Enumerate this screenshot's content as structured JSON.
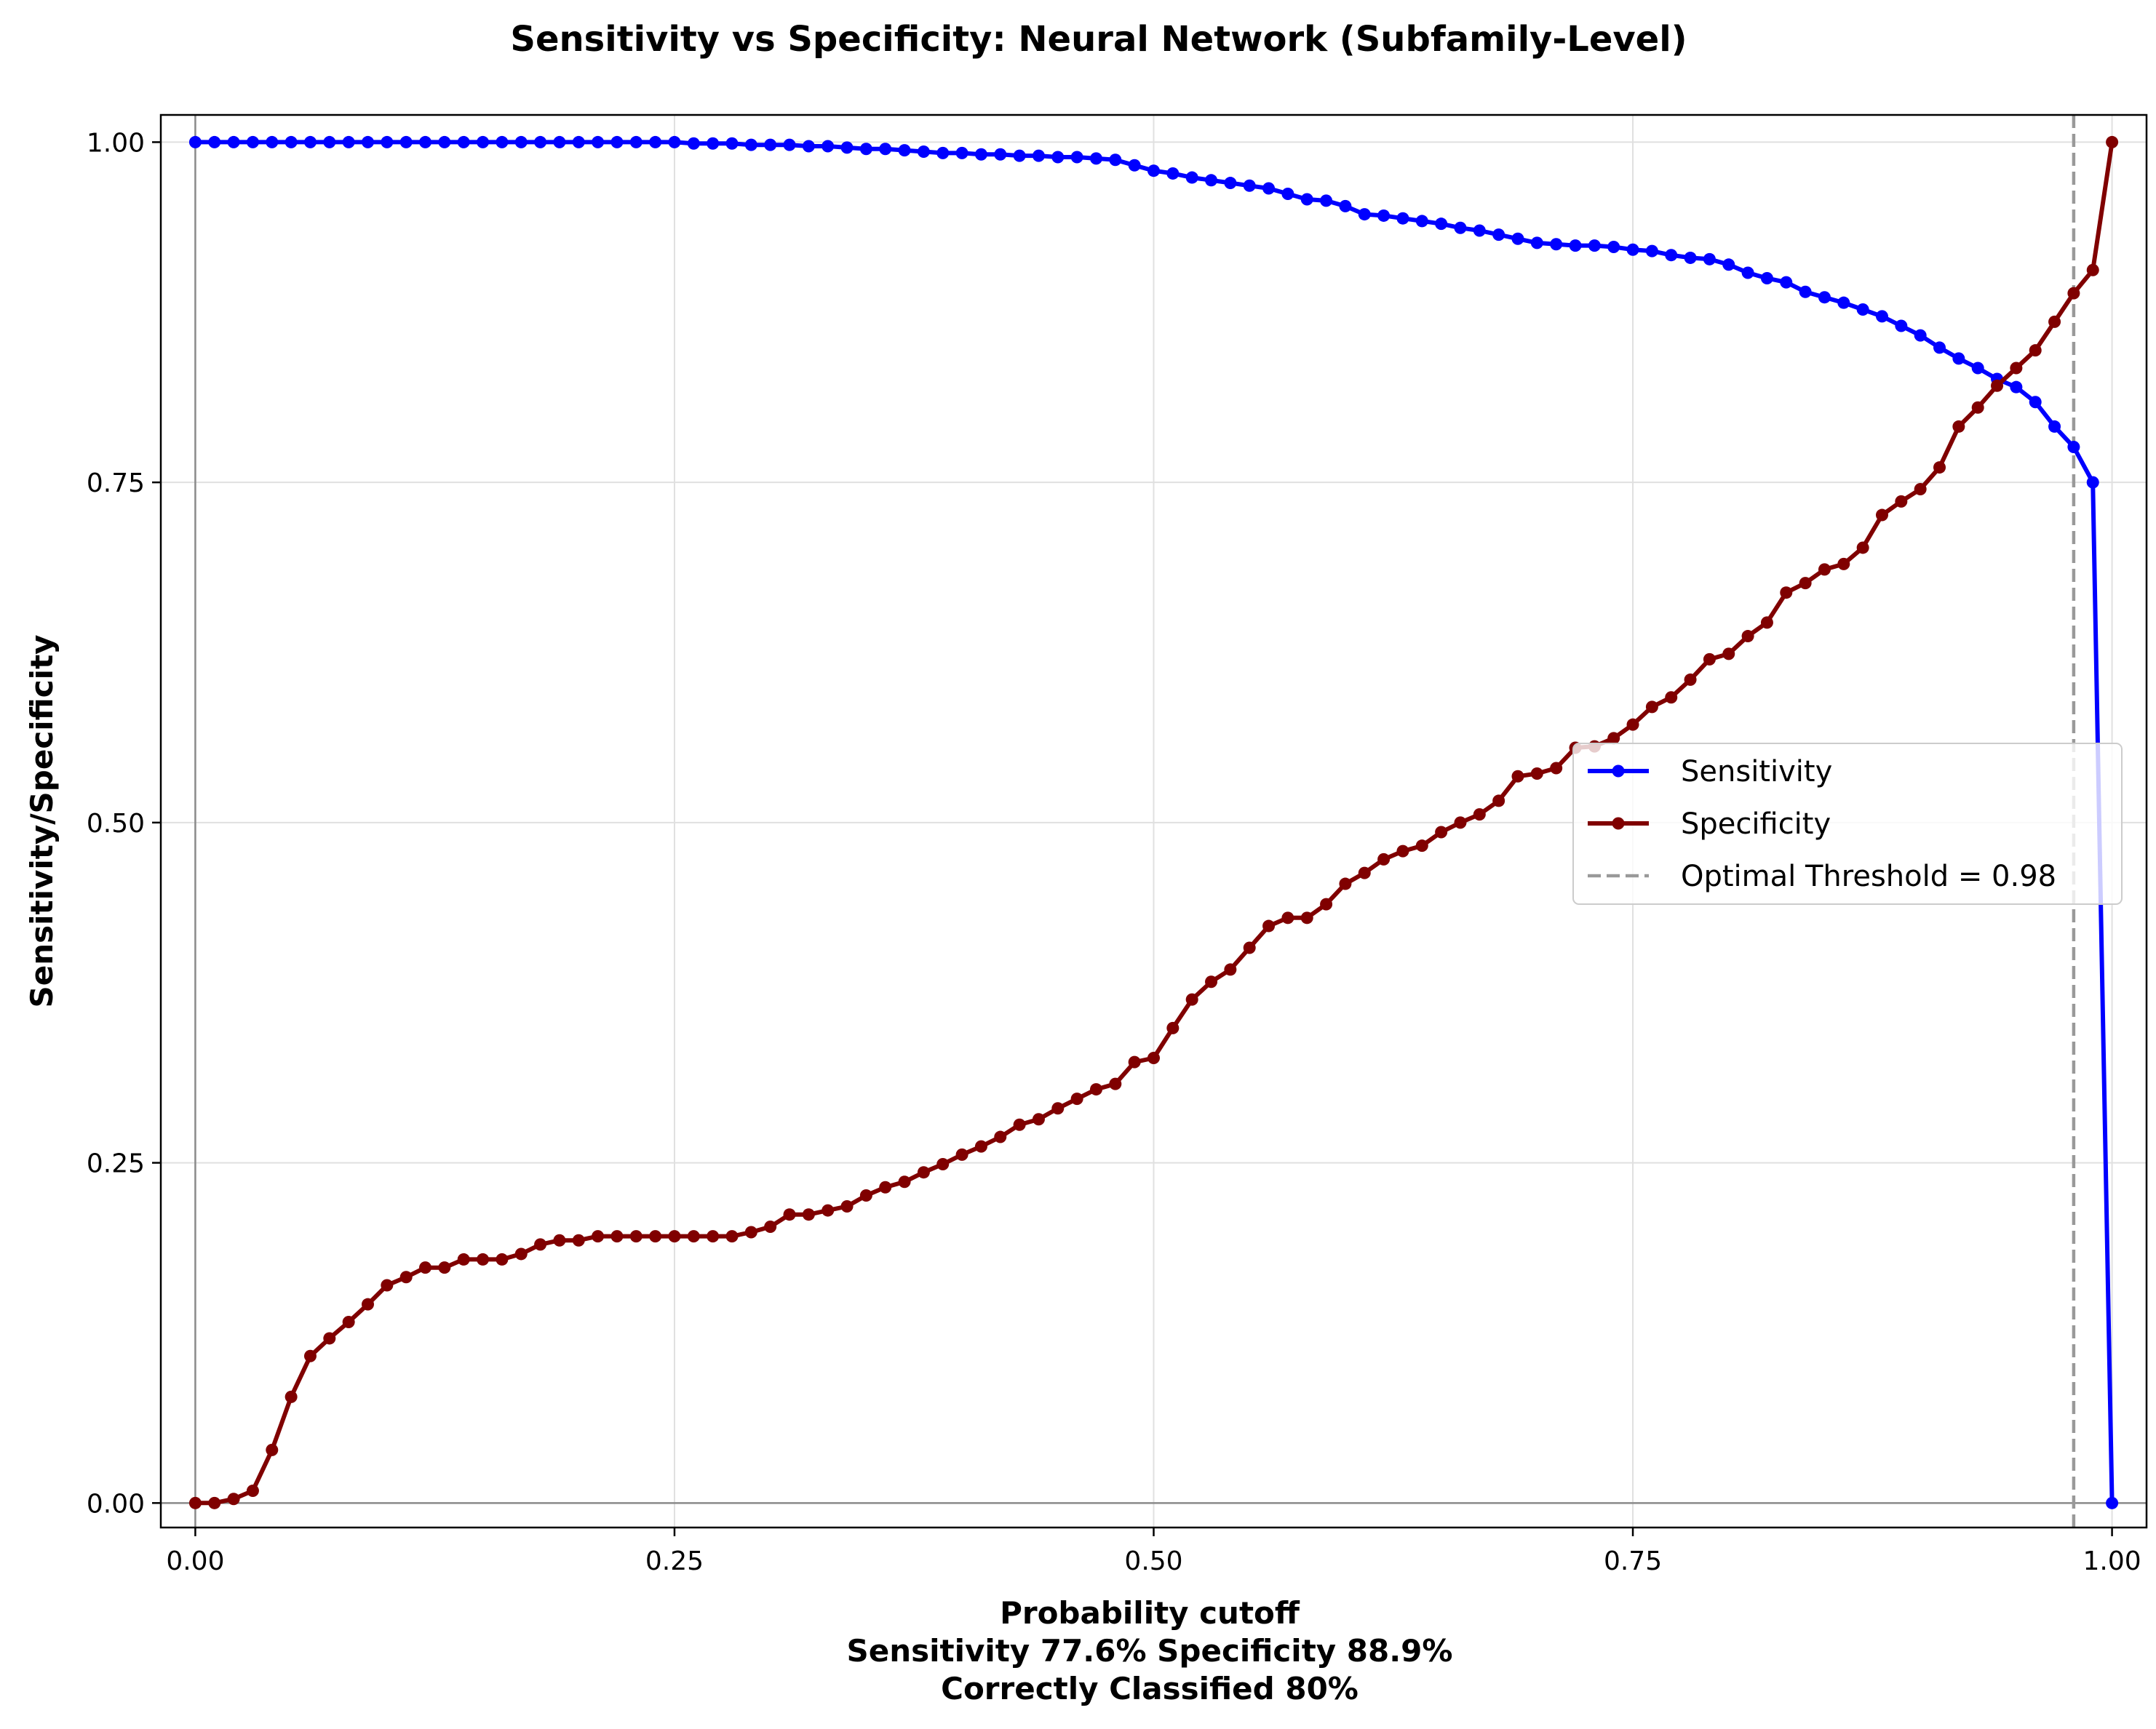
{
  "chart_data": {
    "type": "line",
    "title": "Sensitivity vs Specificity: Neural Network (Subfamily-Level)",
    "xlabel": "Probability cutoff",
    "xlabel_lines": [
      "Sensitivity 77.6% Specificity 88.9%",
      "Correctly Classified 80%"
    ],
    "ylabel": "Sensitivity/Specificity",
    "xlim": [
      -0.018,
      1.018
    ],
    "ylim": [
      -0.018,
      1.02
    ],
    "x_ticks": [
      0,
      0.25,
      0.5,
      0.75,
      1.0
    ],
    "x_tick_labels": [
      "0.00",
      "0.25",
      "0.50",
      "0.75",
      "1.00"
    ],
    "y_ticks": [
      0,
      0.25,
      0.5,
      0.75,
      1.0
    ],
    "y_tick_labels": [
      "0.00",
      "0.25",
      "0.50",
      "0.75",
      "1.00"
    ],
    "grid": true,
    "legend_position": "center-right",
    "optimal_threshold": 0.98,
    "optimal_threshold_label": "Optimal Threshold = 0.98",
    "series": [
      {
        "name": "Sensitivity",
        "color": "#0000ff",
        "x": [
          0.0,
          0.01,
          0.02,
          0.03,
          0.04,
          0.05,
          0.06,
          0.07,
          0.08,
          0.09,
          0.1,
          0.11,
          0.12,
          0.13,
          0.14,
          0.15,
          0.16,
          0.17,
          0.18,
          0.19,
          0.2,
          0.21,
          0.22,
          0.23,
          0.24,
          0.25,
          0.26,
          0.27,
          0.28,
          0.29,
          0.3,
          0.31,
          0.32,
          0.33,
          0.34,
          0.35,
          0.36,
          0.37,
          0.38,
          0.39,
          0.4,
          0.41,
          0.42,
          0.43,
          0.44,
          0.45,
          0.46,
          0.47,
          0.48,
          0.49,
          0.5,
          0.51,
          0.52,
          0.53,
          0.54,
          0.55,
          0.56,
          0.57,
          0.58,
          0.59,
          0.6,
          0.61,
          0.62,
          0.63,
          0.64,
          0.65,
          0.66,
          0.67,
          0.68,
          0.69,
          0.7,
          0.71,
          0.72,
          0.73,
          0.74,
          0.75,
          0.76,
          0.77,
          0.78,
          0.79,
          0.8,
          0.81,
          0.82,
          0.83,
          0.84,
          0.85,
          0.86,
          0.87,
          0.88,
          0.89,
          0.9,
          0.91,
          0.92,
          0.93,
          0.94,
          0.95,
          0.96,
          0.97,
          0.98,
          0.99,
          1.0
        ],
        "values": [
          1.0,
          1.0,
          1.0,
          1.0,
          1.0,
          1.0,
          1.0,
          1.0,
          1.0,
          1.0,
          1.0,
          1.0,
          1.0,
          1.0,
          1.0,
          1.0,
          1.0,
          1.0,
          1.0,
          1.0,
          1.0,
          1.0,
          1.0,
          1.0,
          1.0,
          1.0,
          0.999,
          0.999,
          0.999,
          0.998,
          0.998,
          0.998,
          0.997,
          0.997,
          0.996,
          0.995,
          0.995,
          0.994,
          0.993,
          0.992,
          0.992,
          0.991,
          0.991,
          0.99,
          0.99,
          0.989,
          0.989,
          0.988,
          0.987,
          0.983,
          0.979,
          0.977,
          0.974,
          0.972,
          0.97,
          0.968,
          0.966,
          0.962,
          0.958,
          0.957,
          0.953,
          0.947,
          0.946,
          0.944,
          0.942,
          0.94,
          0.937,
          0.935,
          0.932,
          0.929,
          0.926,
          0.925,
          0.924,
          0.924,
          0.923,
          0.921,
          0.92,
          0.917,
          0.915,
          0.914,
          0.91,
          0.904,
          0.9,
          0.897,
          0.89,
          0.886,
          0.882,
          0.877,
          0.872,
          0.865,
          0.858,
          0.849,
          0.841,
          0.834,
          0.826,
          0.82,
          0.809,
          0.791,
          0.776,
          0.75,
          0.0
        ]
      },
      {
        "name": "Specificity",
        "color": "#800000",
        "x": [
          0.0,
          0.01,
          0.02,
          0.03,
          0.04,
          0.05,
          0.06,
          0.07,
          0.08,
          0.09,
          0.1,
          0.11,
          0.12,
          0.13,
          0.14,
          0.15,
          0.16,
          0.17,
          0.18,
          0.19,
          0.2,
          0.21,
          0.22,
          0.23,
          0.24,
          0.25,
          0.26,
          0.27,
          0.28,
          0.29,
          0.3,
          0.31,
          0.32,
          0.33,
          0.34,
          0.35,
          0.36,
          0.37,
          0.38,
          0.39,
          0.4,
          0.41,
          0.42,
          0.43,
          0.44,
          0.45,
          0.46,
          0.47,
          0.48,
          0.49,
          0.5,
          0.51,
          0.52,
          0.53,
          0.54,
          0.55,
          0.56,
          0.57,
          0.58,
          0.59,
          0.6,
          0.61,
          0.62,
          0.63,
          0.64,
          0.65,
          0.66,
          0.67,
          0.68,
          0.69,
          0.7,
          0.71,
          0.72,
          0.73,
          0.74,
          0.75,
          0.76,
          0.77,
          0.78,
          0.79,
          0.8,
          0.81,
          0.82,
          0.83,
          0.84,
          0.85,
          0.86,
          0.87,
          0.88,
          0.89,
          0.9,
          0.91,
          0.92,
          0.93,
          0.94,
          0.95,
          0.96,
          0.97,
          0.98,
          0.99,
          1.0
        ],
        "values": [
          0.0,
          0.0,
          0.003,
          0.009,
          0.039,
          0.078,
          0.108,
          0.121,
          0.133,
          0.146,
          0.16,
          0.166,
          0.173,
          0.173,
          0.179,
          0.179,
          0.179,
          0.183,
          0.19,
          0.193,
          0.193,
          0.196,
          0.196,
          0.196,
          0.196,
          0.196,
          0.196,
          0.196,
          0.196,
          0.199,
          0.203,
          0.212,
          0.212,
          0.215,
          0.218,
          0.226,
          0.232,
          0.236,
          0.243,
          0.249,
          0.256,
          0.262,
          0.269,
          0.278,
          0.282,
          0.29,
          0.297,
          0.304,
          0.308,
          0.324,
          0.327,
          0.349,
          0.37,
          0.383,
          0.392,
          0.408,
          0.424,
          0.43,
          0.43,
          0.44,
          0.455,
          0.463,
          0.473,
          0.479,
          0.483,
          0.493,
          0.5,
          0.506,
          0.516,
          0.534,
          0.536,
          0.54,
          0.555,
          0.556,
          0.562,
          0.572,
          0.585,
          0.592,
          0.605,
          0.62,
          0.624,
          0.637,
          0.647,
          0.669,
          0.676,
          0.686,
          0.69,
          0.702,
          0.726,
          0.736,
          0.745,
          0.761,
          0.791,
          0.805,
          0.821,
          0.834,
          0.847,
          0.868,
          0.889,
          0.906,
          1.0
        ]
      }
    ]
  }
}
